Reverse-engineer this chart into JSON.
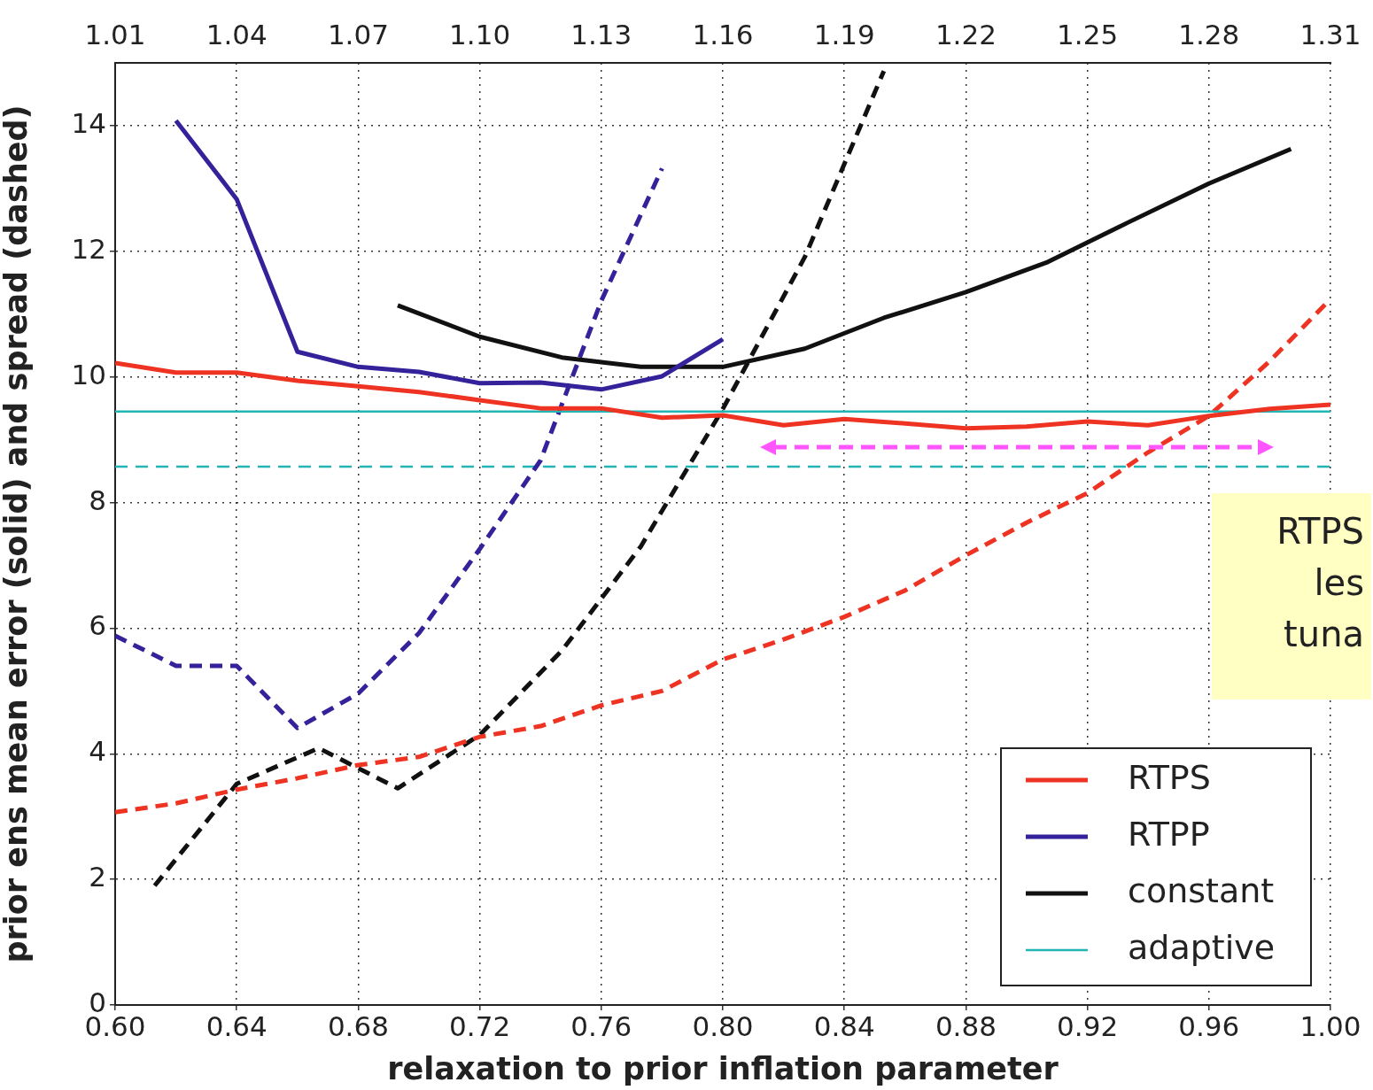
{
  "chart_data": {
    "type": "line",
    "xlabel": "relaxation to prior inflation parameter",
    "ylabel": "prior ens mean error (solid) and spread (dashed)",
    "xlim": [
      0.6,
      1.0
    ],
    "xticks": [
      {
        "value": 0.6,
        "label": "0.60"
      },
      0.64,
      0.68,
      0.72,
      0.76,
      {
        "value": 0.8,
        "label": "0.80"
      },
      0.84,
      0.88,
      0.92,
      0.96,
      {
        "value": 1.0,
        "label": "1.00"
      }
    ],
    "x2lim": [
      1.01,
      1.31
    ],
    "x2ticks": [
      1.01,
      1.04,
      1.07,
      {
        "value": 1.1,
        "label": "1.10"
      },
      1.13,
      1.16,
      1.19,
      1.22,
      1.25,
      1.28,
      1.31
    ],
    "ylim": [
      0,
      15
    ],
    "yticks": [
      0,
      2,
      4,
      6,
      8,
      10,
      12,
      14
    ],
    "grid": true,
    "legend": "bottom right",
    "marker": "none",
    "annotations": [
      "RTPS\nles\ntuna"
    ],
    "series": [
      {
        "name": "RTPS",
        "color": "#ee3322",
        "line_style": "solid",
        "x": [
          0.6,
          0.62,
          0.64,
          0.66,
          0.68,
          0.7,
          0.72,
          0.74,
          0.76,
          0.78,
          0.8,
          0.82,
          0.84,
          0.86,
          0.88,
          0.9,
          0.92,
          0.94,
          0.96,
          0.98,
          1.0
        ],
        "values": [
          10.22,
          10.07,
          10.07,
          9.94,
          9.85,
          9.76,
          9.63,
          9.5,
          9.5,
          9.35,
          9.39,
          9.23,
          9.33,
          9.26,
          9.18,
          9.21,
          9.29,
          9.23,
          9.38,
          9.49,
          9.56
        ]
      },
      {
        "name": "RTPP",
        "color": "#33229a",
        "line_style": "solid",
        "x": [
          0.62,
          0.64,
          0.66,
          0.68,
          0.7,
          0.72,
          0.74,
          0.76,
          0.78,
          0.8
        ],
        "values": [
          14.08,
          12.83,
          10.4,
          10.16,
          10.08,
          9.9,
          9.91,
          9.8,
          10.01,
          10.6
        ]
      },
      {
        "name": "constant",
        "color": "#111111",
        "line_style": "solid",
        "x": [
          0.693,
          0.72,
          0.747,
          0.773,
          0.8,
          0.827,
          0.853,
          0.88,
          0.907,
          0.933,
          0.96,
          0.987
        ],
        "values": [
          11.14,
          10.64,
          10.31,
          10.16,
          10.16,
          10.45,
          10.94,
          11.35,
          11.83,
          12.45,
          13.08,
          13.63
        ]
      },
      {
        "name": "adaptive",
        "color": "#22b5b5",
        "line_style": "solid",
        "x": [
          0.6,
          1.0
        ],
        "values": [
          9.45,
          9.45
        ]
      },
      {
        "color": "#ee3322",
        "line_style": "dashed",
        "x": [
          0.6,
          0.62,
          0.64,
          0.66,
          0.68,
          0.7,
          0.72,
          0.74,
          0.76,
          0.78,
          0.8,
          0.82,
          0.84,
          0.86,
          0.88,
          0.9,
          0.92,
          0.94,
          0.96,
          0.98,
          1.0
        ],
        "values": [
          3.07,
          3.21,
          3.43,
          3.61,
          3.82,
          3.95,
          4.27,
          4.44,
          4.77,
          5.0,
          5.5,
          5.82,
          6.18,
          6.6,
          7.16,
          7.68,
          8.15,
          8.8,
          9.38,
          10.25,
          11.24
        ]
      },
      {
        "color": "#33229a",
        "line_style": "dashed",
        "x": [
          0.6,
          0.62,
          0.64,
          0.66,
          0.68,
          0.7,
          0.72,
          0.74,
          0.76,
          0.78
        ],
        "values": [
          5.88,
          5.4,
          5.4,
          4.41,
          4.96,
          5.92,
          7.26,
          8.67,
          11.21,
          13.32
        ]
      },
      {
        "color": "#111111",
        "line_style": "dashed",
        "x": [
          0.613,
          0.64,
          0.667,
          0.693,
          0.72,
          0.747,
          0.773,
          0.8,
          0.827,
          0.853
        ],
        "values": [
          1.9,
          3.52,
          4.09,
          3.45,
          4.3,
          5.64,
          7.3,
          9.49,
          11.91,
          14.87
        ]
      },
      {
        "color": "#22b5b5",
        "line_style": "dashed",
        "x": [
          0.6,
          1.0
        ],
        "values": [
          8.57,
          8.57
        ]
      }
    ]
  }
}
